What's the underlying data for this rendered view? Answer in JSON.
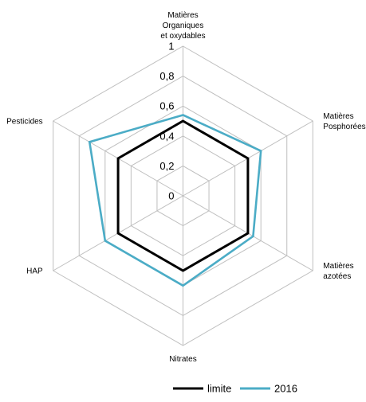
{
  "chart_data": {
    "type": "radar",
    "categories": [
      [
        "Matières",
        "Organiques",
        "et oxydables"
      ],
      [
        "Matières",
        "Posphorées"
      ],
      [
        "Matières",
        "azotées"
      ],
      [
        "Nitrates"
      ],
      [
        "HAP"
      ],
      [
        "Pesticides"
      ]
    ],
    "series": [
      {
        "name": "limite",
        "color": "#000000",
        "values": [
          0.5,
          0.5,
          0.5,
          0.5,
          0.5,
          0.5
        ]
      },
      {
        "name": "2016",
        "color": "#4BACC6",
        "values": [
          0.54,
          0.6,
          0.54,
          0.6,
          0.6,
          0.72
        ]
      }
    ],
    "r_ticks": [
      "0",
      "0,2",
      "0,4",
      "0,6",
      "0,8",
      "1"
    ],
    "r_range": [
      0,
      1
    ],
    "grid": true,
    "legend_position": "bottom"
  }
}
